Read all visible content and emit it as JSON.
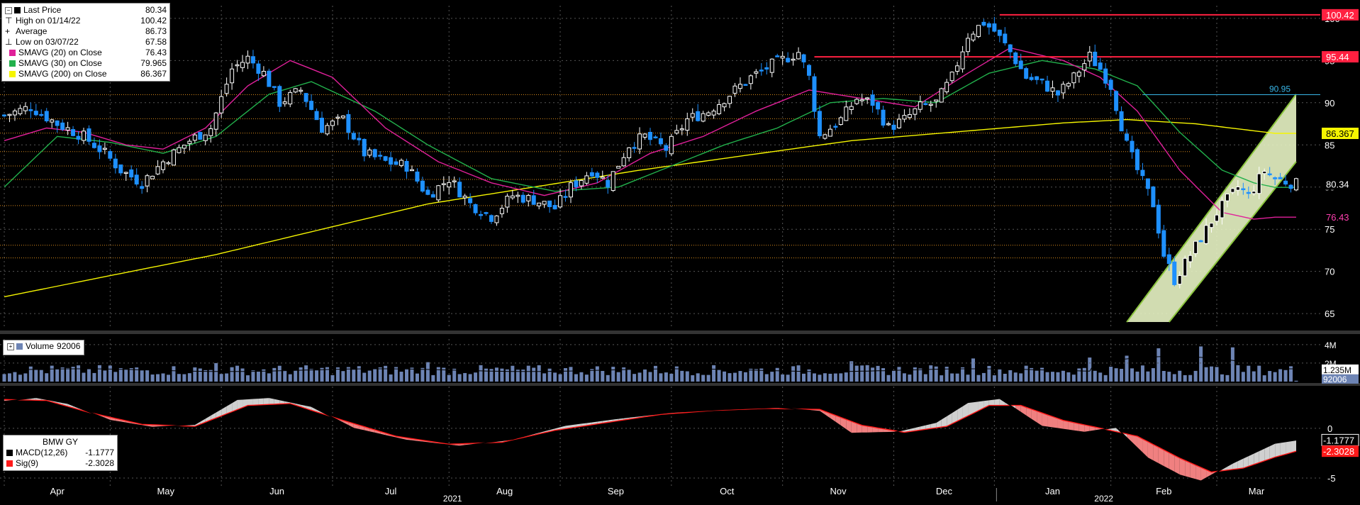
{
  "legend": {
    "items": [
      {
        "label": "Last Price",
        "value": "80.34",
        "color": "#000000"
      },
      {
        "label": "High on 01/14/22",
        "value": "100.42",
        "color": "none"
      },
      {
        "label": "Average",
        "value": "86.73",
        "color": "none"
      },
      {
        "label": "Low on 03/07/22",
        "value": "67.58",
        "color": "none"
      },
      {
        "label": "SMAVG (20)  on Close",
        "value": "76.43",
        "color": "#e0209a"
      },
      {
        "label": "SMAVG (30)  on Close",
        "value": "79.965",
        "color": "#22b14c"
      },
      {
        "label": "SMAVG (200)  on Close",
        "value": "86.367",
        "color": "#f5f500"
      }
    ]
  },
  "volume_legend": {
    "label": "Volume",
    "value": "92006"
  },
  "macd_legend": {
    "title": "BMW GY",
    "items": [
      {
        "label": "MACD(12,26)",
        "value": "-1.1777",
        "color": "#000000"
      },
      {
        "label": "Sig(9)",
        "value": "-2.3028",
        "color": "#ff1a1a"
      }
    ]
  },
  "price_tags": {
    "high": "100.42",
    "resistance": "95.44",
    "level": "90.95",
    "sma200": "86.367",
    "last": "80.34",
    "sma20": "76.43"
  },
  "volume_tags": {
    "top": "4M",
    "mid": "2M",
    "avg": "1.235M",
    "last": "92006"
  },
  "macd_tags": {
    "macd": "-1.1777",
    "sig": "-2.3028"
  },
  "x_axis": {
    "months": [
      "Apr",
      "May",
      "Jun",
      "Jul",
      "Aug",
      "Sep",
      "Oct",
      "Nov",
      "Dec",
      "Jan",
      "Feb",
      "Mar"
    ],
    "years": [
      "2021",
      "2022"
    ]
  },
  "chart_data": {
    "type": "candlestick",
    "instrument": "BMW GY",
    "price_axis": {
      "ticks": [
        65,
        70,
        75,
        80,
        85,
        90,
        95,
        100
      ],
      "ylim": [
        63.5,
        101.5
      ]
    },
    "volume_axis": {
      "ticks": [
        "2M",
        "4M"
      ]
    },
    "macd_axis": {
      "ticks": [
        -5,
        0
      ]
    },
    "month_positions": [
      0,
      20,
      41,
      62,
      84,
      105,
      126,
      147,
      168,
      187,
      209,
      229
    ],
    "n_days": 245,
    "price_anchors": [
      [
        0,
        88.5
      ],
      [
        5,
        89.5
      ],
      [
        10,
        87.5
      ],
      [
        15,
        86
      ],
      [
        19,
        84
      ],
      [
        22,
        82
      ],
      [
        26,
        80.5
      ],
      [
        30,
        83
      ],
      [
        35,
        85.5
      ],
      [
        39,
        87
      ],
      [
        43,
        94
      ],
      [
        46,
        95.3
      ],
      [
        49,
        93.5
      ],
      [
        52,
        90
      ],
      [
        56,
        91.5
      ],
      [
        60,
        87
      ],
      [
        64,
        88
      ],
      [
        68,
        84
      ],
      [
        72,
        83
      ],
      [
        76,
        82.5
      ],
      [
        80,
        79
      ],
      [
        84,
        81
      ],
      [
        88,
        78
      ],
      [
        92,
        76.5
      ],
      [
        96,
        79
      ],
      [
        100,
        78.5
      ],
      [
        104,
        77.5
      ],
      [
        107,
        80
      ],
      [
        111,
        82
      ],
      [
        114,
        80.5
      ],
      [
        118,
        85
      ],
      [
        121,
        86
      ],
      [
        125,
        84.5
      ],
      [
        129,
        88
      ],
      [
        133,
        89
      ],
      [
        137,
        91
      ],
      [
        141,
        93
      ],
      [
        145,
        94.5
      ],
      [
        150,
        96
      ],
      [
        152,
        93
      ],
      [
        154,
        86
      ],
      [
        158,
        88
      ],
      [
        161,
        90.5
      ],
      [
        164,
        90
      ],
      [
        167,
        87
      ],
      [
        170,
        88
      ],
      [
        173,
        89.5
      ],
      [
        176,
        90
      ],
      [
        179,
        93
      ],
      [
        182,
        98
      ],
      [
        185,
        99.5
      ],
      [
        187,
        98.5
      ],
      [
        190,
        96
      ],
      [
        193,
        93
      ],
      [
        196,
        92.3
      ],
      [
        199,
        91
      ],
      [
        202,
        93
      ],
      [
        205,
        95.5
      ],
      [
        207,
        94
      ],
      [
        209,
        92
      ],
      [
        212,
        85
      ],
      [
        214,
        82
      ],
      [
        217,
        78
      ],
      [
        219,
        72
      ],
      [
        221,
        69
      ],
      [
        223,
        71
      ],
      [
        226,
        74
      ],
      [
        229,
        77
      ],
      [
        231,
        78.5
      ],
      [
        233,
        80
      ],
      [
        235,
        79
      ],
      [
        238,
        82
      ],
      [
        240,
        81
      ],
      [
        244,
        80.34
      ]
    ],
    "sma20_anchors": [
      [
        0,
        85.5
      ],
      [
        8,
        87
      ],
      [
        15,
        86.5
      ],
      [
        23,
        85
      ],
      [
        30,
        84.5
      ],
      [
        38,
        87
      ],
      [
        46,
        92
      ],
      [
        54,
        95
      ],
      [
        62,
        93
      ],
      [
        72,
        87
      ],
      [
        82,
        83
      ],
      [
        92,
        80.5
      ],
      [
        102,
        79
      ],
      [
        112,
        80.5
      ],
      [
        122,
        84
      ],
      [
        132,
        86
      ],
      [
        142,
        89
      ],
      [
        152,
        91.5
      ],
      [
        162,
        90.5
      ],
      [
        172,
        89.5
      ],
      [
        182,
        93.5
      ],
      [
        190,
        96.5
      ],
      [
        200,
        95
      ],
      [
        207,
        93
      ],
      [
        214,
        89
      ],
      [
        222,
        82
      ],
      [
        230,
        77
      ],
      [
        236,
        76.2
      ],
      [
        240,
        76.43
      ]
    ],
    "sma30_anchors": [
      [
        0,
        80
      ],
      [
        10,
        86
      ],
      [
        20,
        85.3
      ],
      [
        30,
        84
      ],
      [
        40,
        86
      ],
      [
        50,
        91
      ],
      [
        58,
        92.5
      ],
      [
        70,
        89
      ],
      [
        80,
        85
      ],
      [
        92,
        81
      ],
      [
        104,
        79.5
      ],
      [
        116,
        80
      ],
      [
        126,
        82.5
      ],
      [
        136,
        85
      ],
      [
        146,
        87
      ],
      [
        156,
        90
      ],
      [
        166,
        90.5
      ],
      [
        176,
        90
      ],
      [
        186,
        93.5
      ],
      [
        196,
        95
      ],
      [
        206,
        94
      ],
      [
        214,
        92
      ],
      [
        222,
        86.5
      ],
      [
        230,
        82
      ],
      [
        236,
        80.5
      ],
      [
        240,
        79.965
      ]
    ],
    "sma200_anchors": [
      [
        0,
        67
      ],
      [
        40,
        72
      ],
      [
        80,
        78
      ],
      [
        120,
        82
      ],
      [
        160,
        85.5
      ],
      [
        200,
        87.6
      ],
      [
        212,
        88
      ],
      [
        225,
        87.5
      ],
      [
        240,
        86.367
      ]
    ],
    "resistance_lines": [
      {
        "value": 100.42,
        "from_day": 188
      },
      {
        "value": 95.44,
        "from_day": 153
      },
      {
        "value": 90.95,
        "from_day": 215
      }
    ],
    "horizontal_levels": [
      90.95,
      88.1,
      86.4,
      84.2,
      82.5,
      80.9,
      77.8,
      73.1,
      71.6
    ],
    "channel": {
      "lower": [
        [
          220,
          64
        ],
        [
          244,
          83
        ]
      ],
      "upper": [
        [
          212,
          64
        ],
        [
          244,
          91
        ]
      ]
    },
    "volume": {
      "avg": 1235000,
      "last": 92006,
      "spikes": [
        [
          218,
          3600000
        ],
        [
          226,
          3800000
        ],
        [
          232,
          3700000
        ],
        [
          205,
          2600000
        ],
        [
          212,
          2800000
        ],
        [
          183,
          2500000
        ],
        [
          160,
          2200000
        ],
        [
          80,
          2100000
        ],
        [
          40,
          2000000
        ]
      ]
    },
    "macd_anchors": [
      [
        0,
        2.7
      ],
      [
        6,
        3.1
      ],
      [
        12,
        2.5
      ],
      [
        20,
        0.8
      ],
      [
        28,
        0.1
      ],
      [
        36,
        0.4
      ],
      [
        44,
        2.9
      ],
      [
        50,
        3.1
      ],
      [
        58,
        2.2
      ],
      [
        66,
        0
      ],
      [
        76,
        -1.2
      ],
      [
        86,
        -1.8
      ],
      [
        96,
        -1.1
      ],
      [
        106,
        0.3
      ],
      [
        116,
        1.0
      ],
      [
        126,
        1.6
      ],
      [
        136,
        1.9
      ],
      [
        146,
        2.1
      ],
      [
        154,
        1.7
      ],
      [
        160,
        -0.5
      ],
      [
        168,
        -0.4
      ],
      [
        176,
        0.6
      ],
      [
        182,
        2.6
      ],
      [
        188,
        3.0
      ],
      [
        196,
        0.2
      ],
      [
        204,
        -0.4
      ],
      [
        210,
        0.1
      ],
      [
        216,
        -3.0
      ],
      [
        222,
        -4.7
      ],
      [
        226,
        -5.3
      ],
      [
        232,
        -3.5
      ],
      [
        240,
        -1.5
      ],
      [
        244,
        -1.1777
      ]
    ],
    "sig_anchors": [
      [
        0,
        2.9
      ],
      [
        8,
        2.8
      ],
      [
        16,
        1.6
      ],
      [
        26,
        0.4
      ],
      [
        36,
        0.2
      ],
      [
        46,
        2.3
      ],
      [
        54,
        2.5
      ],
      [
        64,
        0.8
      ],
      [
        74,
        -0.8
      ],
      [
        84,
        -1.6
      ],
      [
        94,
        -1.4
      ],
      [
        104,
        -0.2
      ],
      [
        114,
        0.6
      ],
      [
        124,
        1.4
      ],
      [
        134,
        1.8
      ],
      [
        144,
        2.0
      ],
      [
        154,
        1.9
      ],
      [
        162,
        0.3
      ],
      [
        170,
        -0.4
      ],
      [
        178,
        0.2
      ],
      [
        186,
        2.3
      ],
      [
        192,
        2.3
      ],
      [
        200,
        0.8
      ],
      [
        208,
        -0.1
      ],
      [
        214,
        -0.8
      ],
      [
        222,
        -3.0
      ],
      [
        228,
        -4.4
      ],
      [
        234,
        -4.0
      ],
      [
        240,
        -2.9
      ],
      [
        244,
        -2.3028
      ]
    ]
  }
}
